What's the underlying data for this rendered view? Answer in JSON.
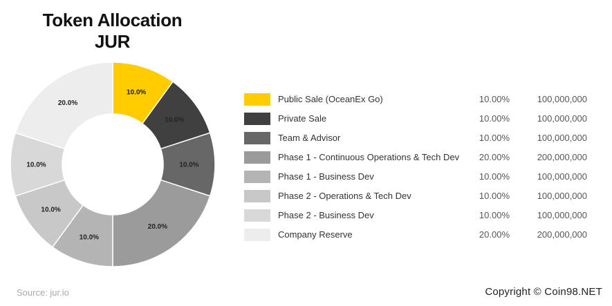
{
  "chart_data": {
    "type": "pie",
    "title_line1": "Token Allocation",
    "title_line2": "JUR",
    "slices": [
      {
        "label": "Public Sale (OceanEx Go)",
        "value": 10.0,
        "pct_label": "10.0%",
        "legend_pct": "10.00%",
        "tokens": "100,000,000",
        "color": "#FFCC00"
      },
      {
        "label": "Private Sale",
        "value": 10.0,
        "pct_label": "10.0%",
        "legend_pct": "10.00%",
        "tokens": "100,000,000",
        "color": "#404040"
      },
      {
        "label": "Team & Advisor",
        "value": 10.0,
        "pct_label": "10.0%",
        "legend_pct": "10.00%",
        "tokens": "100,000,000",
        "color": "#676767"
      },
      {
        "label": "Phase 1 - Continuous Operations & Tech Dev",
        "value": 20.0,
        "pct_label": "20.0%",
        "legend_pct": "20.00%",
        "tokens": "200,000,000",
        "color": "#9B9B9B"
      },
      {
        "label": "Phase 1 - Business Dev",
        "value": 10.0,
        "pct_label": "10.0%",
        "legend_pct": "10.00%",
        "tokens": "100,000,000",
        "color": "#B4B4B4"
      },
      {
        "label": "Phase 2 - Operations & Tech Dev",
        "value": 10.0,
        "pct_label": "10.0%",
        "legend_pct": "10.00%",
        "tokens": "100,000,000",
        "color": "#C8C8C8"
      },
      {
        "label": "Phase 2 - Business Dev",
        "value": 10.0,
        "pct_label": "10.0%",
        "legend_pct": "10.00%",
        "tokens": "100,000,000",
        "color": "#D8D8D8"
      },
      {
        "label": "Company Reserve",
        "value": 20.0,
        "pct_label": "20.0%",
        "legend_pct": "20.00%",
        "tokens": "200,000,000",
        "color": "#EDEDED"
      }
    ]
  },
  "footer": {
    "source": "Source: jur.io",
    "copyright": "Copyright © Coin98.NET"
  }
}
